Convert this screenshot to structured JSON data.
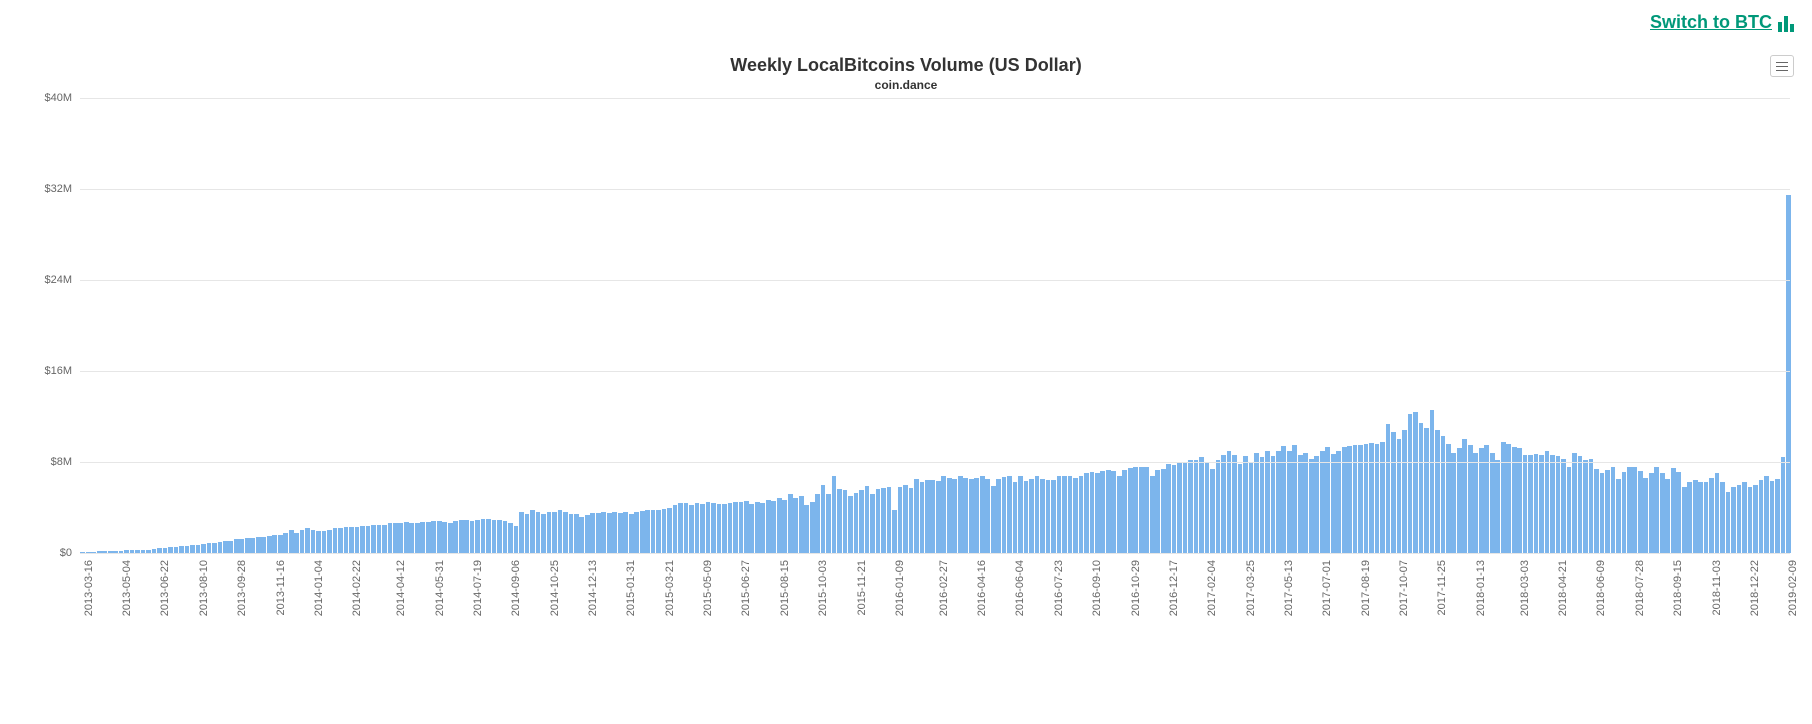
{
  "link": {
    "text": "Switch to BTC",
    "color": "#009879"
  },
  "menu": {
    "present": true
  },
  "chart": {
    "type": "bar",
    "title": "Weekly LocalBitcoins Volume (US Dollar)",
    "subtitle": "coin.dance",
    "title_color": "#333333",
    "title_fontsize": 18,
    "subtitle_fontsize": 12,
    "bar_color": "#7cb5ec",
    "grid_color": "#e6e6e6",
    "background_color": "#ffffff",
    "ylabel_color": "#666666",
    "xlabel_color": "#666666",
    "label_fontsize": 11,
    "ylim": [
      0,
      40
    ],
    "yticks": [
      {
        "v": 0,
        "label": "$0"
      },
      {
        "v": 8,
        "label": "$8M"
      },
      {
        "v": 16,
        "label": "$16M"
      },
      {
        "v": 24,
        "label": "$24M"
      },
      {
        "v": 32,
        "label": "$32M"
      },
      {
        "v": 40,
        "label": "$40M"
      }
    ],
    "xticks": [
      "2013-03-16",
      "2013-05-04",
      "2013-06-22",
      "2013-08-10",
      "2013-09-28",
      "2013-11-16",
      "2014-01-04",
      "2014-02-22",
      "2014-04-12",
      "2014-05-31",
      "2014-07-19",
      "2014-09-06",
      "2014-10-25",
      "2014-12-13",
      "2015-01-31",
      "2015-03-21",
      "2015-05-09",
      "2015-06-27",
      "2015-08-15",
      "2015-10-03",
      "2015-11-21",
      "2016-01-09",
      "2016-02-27",
      "2016-04-16",
      "2016-06-04",
      "2016-07-23",
      "2016-09-10",
      "2016-10-29",
      "2016-12-17",
      "2017-02-04",
      "2017-03-25",
      "2017-05-13",
      "2017-07-01",
      "2017-08-19",
      "2017-10-07",
      "2017-11-25",
      "2018-01-13",
      "2018-03-03",
      "2018-04-21",
      "2018-06-09",
      "2018-07-28",
      "2018-09-15",
      "2018-11-03",
      "2018-12-22",
      "2019-02-09"
    ],
    "values": [
      0.1,
      0.1,
      0.1,
      0.15,
      0.15,
      0.2,
      0.2,
      0.2,
      0.25,
      0.25,
      0.3,
      0.3,
      0.3,
      0.35,
      0.4,
      0.4,
      0.5,
      0.5,
      0.6,
      0.6,
      0.7,
      0.7,
      0.8,
      0.9,
      0.9,
      1.0,
      1.1,
      1.1,
      1.2,
      1.2,
      1.3,
      1.3,
      1.4,
      1.4,
      1.5,
      1.6,
      1.6,
      1.8,
      2.0,
      1.8,
      2.0,
      2.2,
      2.0,
      1.9,
      1.9,
      2.0,
      2.2,
      2.2,
      2.3,
      2.3,
      2.3,
      2.4,
      2.4,
      2.5,
      2.5,
      2.5,
      2.6,
      2.6,
      2.6,
      2.7,
      2.6,
      2.6,
      2.7,
      2.7,
      2.8,
      2.8,
      2.7,
      2.6,
      2.8,
      2.9,
      2.9,
      2.8,
      2.9,
      3.0,
      3.0,
      2.9,
      2.9,
      2.8,
      2.6,
      2.4,
      3.6,
      3.4,
      3.8,
      3.6,
      3.4,
      3.6,
      3.6,
      3.8,
      3.6,
      3.4,
      3.4,
      3.2,
      3.3,
      3.5,
      3.5,
      3.6,
      3.5,
      3.6,
      3.5,
      3.6,
      3.4,
      3.6,
      3.7,
      3.8,
      3.8,
      3.8,
      3.9,
      4.0,
      4.2,
      4.4,
      4.4,
      4.2,
      4.4,
      4.3,
      4.5,
      4.4,
      4.3,
      4.3,
      4.4,
      4.5,
      4.5,
      4.6,
      4.3,
      4.5,
      4.4,
      4.7,
      4.6,
      4.8,
      4.7,
      5.2,
      4.8,
      5.0,
      4.2,
      4.5,
      5.2,
      6.0,
      5.2,
      6.8,
      5.6,
      5.5,
      5.0,
      5.3,
      5.5,
      5.9,
      5.2,
      5.6,
      5.7,
      5.8,
      3.8,
      5.8,
      6.0,
      5.7,
      6.5,
      6.2,
      6.4,
      6.4,
      6.3,
      6.8,
      6.6,
      6.5,
      6.8,
      6.6,
      6.5,
      6.6,
      6.8,
      6.5,
      5.9,
      6.5,
      6.7,
      6.8,
      6.2,
      6.8,
      6.3,
      6.5,
      6.8,
      6.5,
      6.4,
      6.4,
      6.8,
      6.8,
      6.8,
      6.6,
      6.8,
      7.0,
      7.1,
      7.0,
      7.2,
      7.3,
      7.2,
      6.8,
      7.3,
      7.5,
      7.6,
      7.6,
      7.6,
      6.8,
      7.3,
      7.4,
      7.8,
      7.7,
      7.9,
      8.0,
      8.2,
      8.2,
      8.4,
      8.0,
      7.4,
      8.2,
      8.6,
      9.0,
      8.6,
      7.8,
      8.5,
      8.0,
      8.8,
      8.4,
      9.0,
      8.5,
      9.0,
      9.4,
      9.0,
      9.5,
      8.6,
      8.8,
      8.3,
      8.5,
      9.0,
      9.3,
      8.7,
      9.0,
      9.3,
      9.4,
      9.5,
      9.5,
      9.6,
      9.7,
      9.6,
      9.8,
      11.3,
      10.6,
      10.0,
      10.8,
      12.2,
      12.4,
      11.4,
      11.0,
      12.6,
      10.8,
      10.3,
      9.6,
      8.8,
      9.2,
      10.0,
      9.5,
      8.8,
      9.2,
      9.5,
      8.8,
      8.2,
      9.8,
      9.6,
      9.3,
      9.2,
      8.6,
      8.6,
      8.7,
      8.6,
      9.0,
      8.6,
      8.5,
      8.3,
      7.6,
      8.8,
      8.5,
      8.2,
      8.3,
      7.4,
      7.0,
      7.3,
      7.6,
      6.5,
      7.1,
      7.6,
      7.6,
      7.2,
      6.6,
      7.0,
      7.6,
      7.0,
      6.5,
      7.5,
      7.1,
      5.8,
      6.2,
      6.4,
      6.2,
      6.2,
      6.6,
      7.0,
      6.2,
      5.4,
      5.8,
      6.0,
      6.2,
      5.8,
      6.0,
      6.4,
      6.8,
      6.3,
      6.5,
      8.4,
      31.5
    ]
  }
}
